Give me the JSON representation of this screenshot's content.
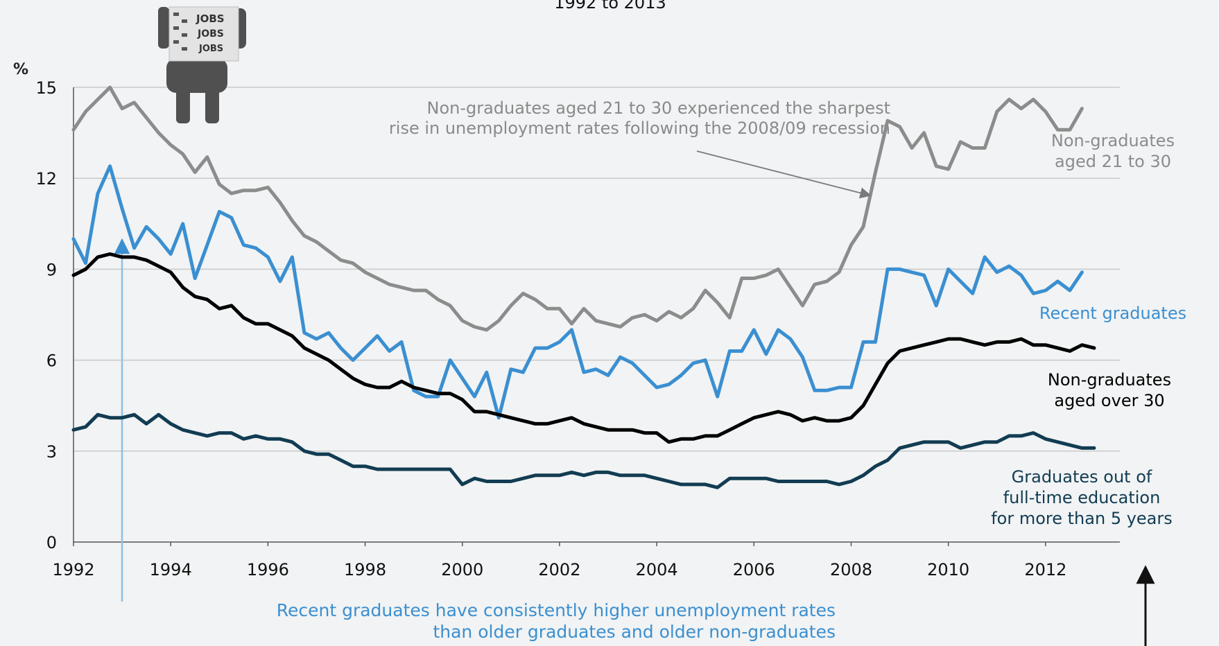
{
  "subtitle": "1992 to 2013",
  "y_unit": "%",
  "colors": {
    "non_grad_young": "#8c8c8c",
    "recent_grad": "#3a8fd1",
    "non_grad_old": "#000000",
    "grad_old": "#123c52",
    "annotation_grey": "#8a8a8a",
    "annotation_blue": "#3b8fd0",
    "grid": "#c9c9c9",
    "background": "#f1f3f4"
  },
  "icon": {
    "name": "jobs-newspaper-reader-icon",
    "text": [
      "JOBS",
      "JOBS",
      "JOBS"
    ]
  },
  "annotations": {
    "top_line1": "Non-graduates aged 21 to 30 experienced the sharpest",
    "top_line2": "rise in unemployment rates following the 2008/09 recession",
    "bottom_line1": "Recent graduates have consistently higher unemployment rates",
    "bottom_line2": "than older graduates and older non-graduates"
  },
  "series_labels": {
    "non_grad_young": [
      "Non-graduates",
      "aged 21 to 30"
    ],
    "recent_grad": [
      "Recent graduates"
    ],
    "non_grad_old": [
      "Non-graduates",
      "aged over 30"
    ],
    "grad_old": [
      "Graduates out of",
      "full-time education",
      "for more than 5 years"
    ]
  },
  "chart_data": {
    "type": "line",
    "subtitle": "1992 to 2013",
    "ylabel": "%",
    "xlim": [
      1992,
      2013.5
    ],
    "ylim": [
      0,
      15
    ],
    "xticks": [
      "1992",
      "1994",
      "1996",
      "1998",
      "2000",
      "2002",
      "2004",
      "2006",
      "2008",
      "2010",
      "2012"
    ],
    "yticks": [
      "0",
      "3",
      "6",
      "9",
      "12",
      "15"
    ],
    "grid": true,
    "x": [
      1992.0,
      1992.25,
      1992.5,
      1992.75,
      1993.0,
      1993.25,
      1993.5,
      1993.75,
      1994.0,
      1994.25,
      1994.5,
      1994.75,
      1995.0,
      1995.25,
      1995.5,
      1995.75,
      1996.0,
      1996.25,
      1996.5,
      1996.75,
      1997.0,
      1997.25,
      1997.5,
      1997.75,
      1998.0,
      1998.25,
      1998.5,
      1998.75,
      1999.0,
      1999.25,
      1999.5,
      1999.75,
      2000.0,
      2000.25,
      2000.5,
      2000.75,
      2001.0,
      2001.25,
      2001.5,
      2001.75,
      2002.0,
      2002.25,
      2002.5,
      2002.75,
      2003.0,
      2003.25,
      2003.5,
      2003.75,
      2004.0,
      2004.25,
      2004.5,
      2004.75,
      2005.0,
      2005.25,
      2005.5,
      2005.75,
      2006.0,
      2006.25,
      2006.5,
      2006.75,
      2007.0,
      2007.25,
      2007.5,
      2007.75,
      2008.0,
      2008.25,
      2008.5,
      2008.75,
      2009.0,
      2009.25,
      2009.5,
      2009.75,
      2010.0,
      2010.25,
      2010.5,
      2010.75,
      2011.0,
      2011.25,
      2011.5,
      2011.75,
      2012.0,
      2012.25,
      2012.5,
      2012.75,
      2013.0
    ],
    "series": [
      {
        "name": "Non-graduates aged 21 to 30",
        "values": [
          13.6,
          14.2,
          14.6,
          15.0,
          14.3,
          14.5,
          14.0,
          13.5,
          13.1,
          12.8,
          12.2,
          12.7,
          11.8,
          11.5,
          11.6,
          11.6,
          11.7,
          11.2,
          10.6,
          10.1,
          9.9,
          9.6,
          9.3,
          9.2,
          8.9,
          8.7,
          8.5,
          8.4,
          8.3,
          8.3,
          8.0,
          7.8,
          7.3,
          7.1,
          7.0,
          7.3,
          7.8,
          8.2,
          8.0,
          7.7,
          7.7,
          7.2,
          7.7,
          7.3,
          7.2,
          7.1,
          7.4,
          7.5,
          7.3,
          7.6,
          7.4,
          7.7,
          8.3,
          7.9,
          7.4,
          8.7,
          8.7,
          8.8,
          9.0,
          8.4,
          7.8,
          8.5,
          8.6,
          8.9,
          9.8,
          10.4,
          12.2,
          13.9,
          13.7,
          13.0,
          13.5,
          12.4,
          12.3,
          13.2,
          13.0,
          13.0,
          14.2,
          14.6,
          14.3,
          14.6,
          14.2,
          13.6,
          13.6,
          14.3,
          null
        ]
      },
      {
        "name": "Recent graduates",
        "values": [
          10.0,
          9.2,
          11.5,
          12.4,
          11.0,
          9.7,
          10.4,
          10.0,
          9.5,
          10.5,
          8.7,
          9.8,
          10.9,
          10.7,
          9.8,
          9.7,
          9.4,
          8.6,
          9.4,
          6.9,
          6.7,
          6.9,
          6.4,
          6.0,
          6.4,
          6.8,
          6.3,
          6.6,
          5.0,
          4.8,
          4.8,
          6.0,
          5.4,
          4.8,
          5.6,
          4.1,
          5.7,
          5.6,
          6.4,
          6.4,
          6.6,
          7.0,
          5.6,
          5.7,
          5.5,
          6.1,
          5.9,
          5.5,
          5.1,
          5.2,
          5.5,
          5.9,
          6.0,
          4.8,
          6.3,
          6.3,
          7.0,
          6.2,
          7.0,
          6.7,
          6.1,
          5.0,
          5.0,
          5.1,
          5.1,
          6.6,
          6.6,
          9.0,
          9.0,
          8.9,
          8.8,
          7.8,
          9.0,
          8.6,
          8.2,
          9.4,
          8.9,
          9.1,
          8.8,
          8.2,
          8.3,
          8.6,
          8.3,
          8.9,
          null
        ]
      },
      {
        "name": "Non-graduates aged over 30",
        "values": [
          8.8,
          9.0,
          9.4,
          9.5,
          9.4,
          9.4,
          9.3,
          9.1,
          8.9,
          8.4,
          8.1,
          8.0,
          7.7,
          7.8,
          7.4,
          7.2,
          7.2,
          7.0,
          6.8,
          6.4,
          6.2,
          6.0,
          5.7,
          5.4,
          5.2,
          5.1,
          5.1,
          5.3,
          5.1,
          5.0,
          4.9,
          4.9,
          4.7,
          4.3,
          4.3,
          4.2,
          4.1,
          4.0,
          3.9,
          3.9,
          4.0,
          4.1,
          3.9,
          3.8,
          3.7,
          3.7,
          3.7,
          3.6,
          3.6,
          3.3,
          3.4,
          3.4,
          3.5,
          3.5,
          3.7,
          3.9,
          4.1,
          4.2,
          4.3,
          4.2,
          4.0,
          4.1,
          4.0,
          4.0,
          4.1,
          4.5,
          5.2,
          5.9,
          6.3,
          6.4,
          6.5,
          6.6,
          6.7,
          6.7,
          6.6,
          6.5,
          6.6,
          6.6,
          6.7,
          6.5,
          6.5,
          6.4,
          6.3,
          6.5,
          6.4
        ]
      },
      {
        "name": "Graduates out of full-time education for more than 5 years",
        "values": [
          3.7,
          3.8,
          4.2,
          4.1,
          4.1,
          4.2,
          3.9,
          4.2,
          3.9,
          3.7,
          3.6,
          3.5,
          3.6,
          3.6,
          3.4,
          3.5,
          3.4,
          3.4,
          3.3,
          3.0,
          2.9,
          2.9,
          2.7,
          2.5,
          2.5,
          2.4,
          2.4,
          2.4,
          2.4,
          2.4,
          2.4,
          2.4,
          1.9,
          2.1,
          2.0,
          2.0,
          2.0,
          2.1,
          2.2,
          2.2,
          2.2,
          2.3,
          2.2,
          2.3,
          2.3,
          2.2,
          2.2,
          2.2,
          2.1,
          2.0,
          1.9,
          1.9,
          1.9,
          1.8,
          2.1,
          2.1,
          2.1,
          2.1,
          2.0,
          2.0,
          2.0,
          2.0,
          2.0,
          1.9,
          2.0,
          2.2,
          2.5,
          2.7,
          3.1,
          3.2,
          3.3,
          3.3,
          3.3,
          3.1,
          3.2,
          3.3,
          3.3,
          3.5,
          3.5,
          3.6,
          3.4,
          3.3,
          3.2,
          3.1,
          3.1
        ]
      }
    ]
  }
}
